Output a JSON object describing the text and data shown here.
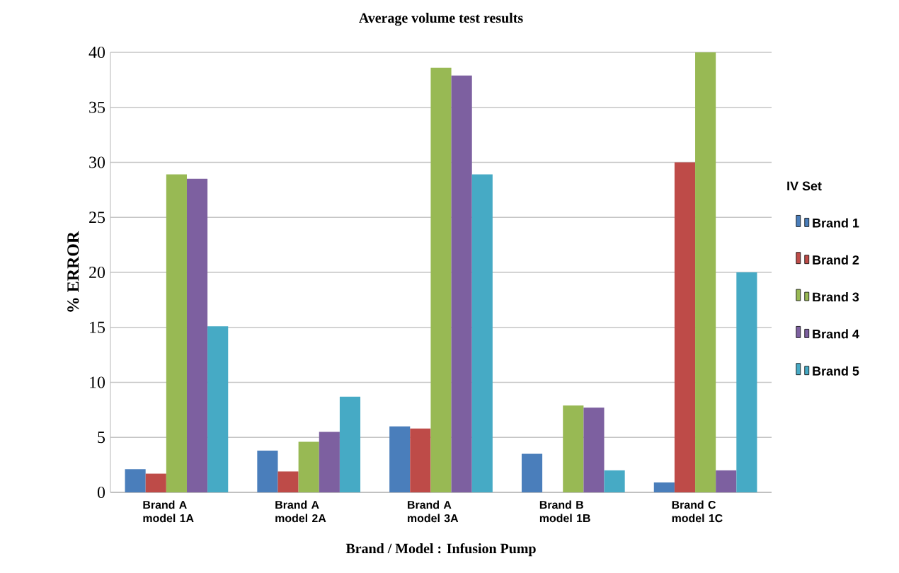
{
  "chart_data": {
    "type": "bar",
    "title": "Average volume test results",
    "xlabel": "Brand / Model : Infusion Pump",
    "ylabel": "% ERROR",
    "legend_title": "IV Set",
    "categories": [
      "Brand A model 1A",
      "Brand A model 2A",
      "Brand A model 3A",
      "Brand B model 1B",
      "Brand C model 1C"
    ],
    "series": [
      {
        "name": "Brand 1",
        "color": "#4a7ebb",
        "values": [
          2.1,
          3.8,
          6.0,
          3.5,
          0.9
        ]
      },
      {
        "name": "Brand 2",
        "color": "#be4b48",
        "values": [
          1.7,
          1.9,
          5.8,
          null,
          30.0
        ]
      },
      {
        "name": "Brand 3",
        "color": "#98b954",
        "values": [
          28.9,
          4.6,
          38.6,
          7.9,
          40.0
        ]
      },
      {
        "name": "Brand 4",
        "color": "#7d60a0",
        "values": [
          28.5,
          5.5,
          37.9,
          7.7,
          2.0
        ]
      },
      {
        "name": "Brand 5",
        "color": "#46aac5",
        "values": [
          15.1,
          8.7,
          28.9,
          2.0,
          20.0
        ]
      }
    ],
    "ylim": [
      0,
      40
    ],
    "yticks": [
      0,
      5,
      10,
      15,
      20,
      25,
      30,
      35,
      40
    ],
    "grid": "y",
    "legend": "right"
  }
}
